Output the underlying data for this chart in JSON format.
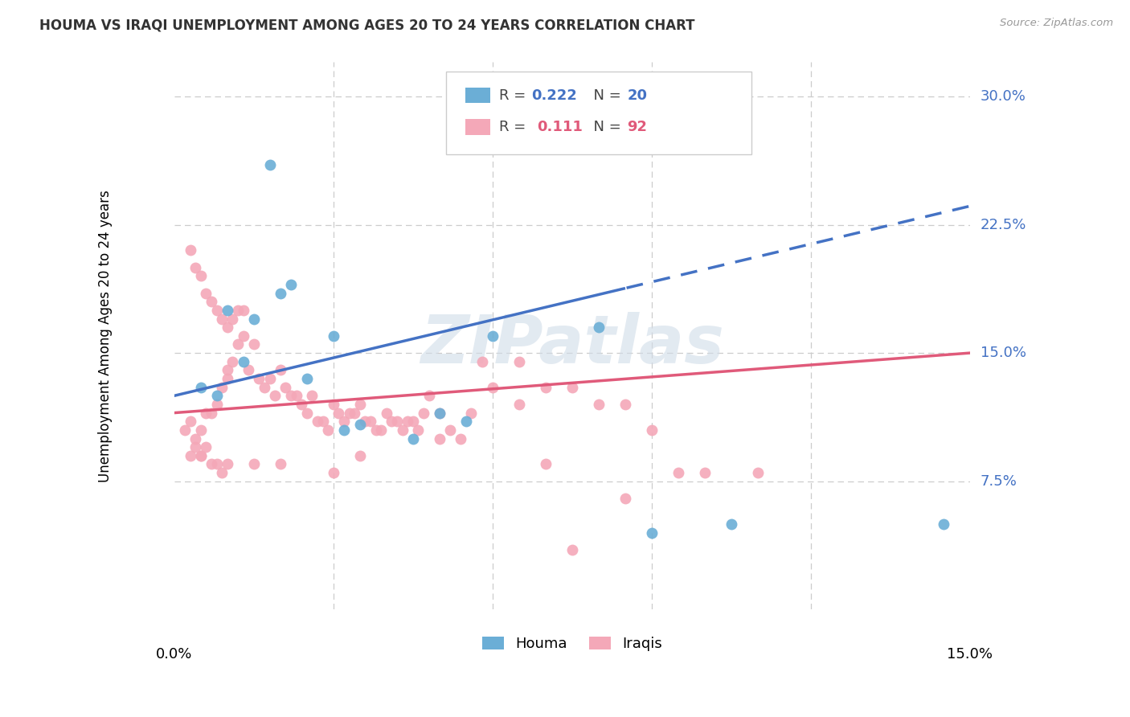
{
  "title": "HOUMA VS IRAQI UNEMPLOYMENT AMONG AGES 20 TO 24 YEARS CORRELATION CHART",
  "source": "Source: ZipAtlas.com",
  "ylabel": "Unemployment Among Ages 20 to 24 years",
  "ytick_labels": [
    "7.5%",
    "15.0%",
    "22.5%",
    "30.0%"
  ],
  "ytick_values": [
    7.5,
    15.0,
    22.5,
    30.0
  ],
  "xlim": [
    0.0,
    15.0
  ],
  "ylim": [
    0.0,
    32.0
  ],
  "houma_color": "#6baed6",
  "iraqis_color": "#f4a8b8",
  "houma_line_color": "#4472c4",
  "iraqis_line_color": "#e05a7a",
  "houma_R": 0.222,
  "houma_N": 20,
  "iraqis_R": 0.111,
  "iraqis_N": 92,
  "houma_points": [
    [
      0.5,
      13.0
    ],
    [
      0.8,
      12.5
    ],
    [
      1.0,
      17.5
    ],
    [
      1.3,
      14.5
    ],
    [
      1.5,
      17.0
    ],
    [
      1.8,
      26.0
    ],
    [
      2.0,
      18.5
    ],
    [
      2.2,
      19.0
    ],
    [
      2.5,
      13.5
    ],
    [
      3.0,
      16.0
    ],
    [
      3.2,
      10.5
    ],
    [
      3.5,
      10.8
    ],
    [
      4.5,
      10.0
    ],
    [
      5.0,
      11.5
    ],
    [
      5.5,
      11.0
    ],
    [
      6.0,
      16.0
    ],
    [
      8.0,
      16.5
    ],
    [
      9.0,
      4.5
    ],
    [
      10.5,
      5.0
    ],
    [
      14.5,
      5.0
    ]
  ],
  "iraqis_points": [
    [
      0.2,
      10.5
    ],
    [
      0.3,
      11.0
    ],
    [
      0.4,
      10.0
    ],
    [
      0.5,
      10.5
    ],
    [
      0.5,
      9.0
    ],
    [
      0.6,
      11.5
    ],
    [
      0.7,
      11.5
    ],
    [
      0.8,
      12.0
    ],
    [
      0.9,
      13.0
    ],
    [
      1.0,
      14.0
    ],
    [
      1.0,
      13.5
    ],
    [
      1.1,
      14.5
    ],
    [
      1.2,
      15.5
    ],
    [
      1.3,
      16.0
    ],
    [
      1.4,
      14.0
    ],
    [
      1.5,
      15.5
    ],
    [
      1.6,
      13.5
    ],
    [
      1.7,
      13.0
    ],
    [
      1.8,
      13.5
    ],
    [
      1.9,
      12.5
    ],
    [
      2.0,
      14.0
    ],
    [
      2.1,
      13.0
    ],
    [
      2.2,
      12.5
    ],
    [
      2.3,
      12.5
    ],
    [
      2.4,
      12.0
    ],
    [
      2.5,
      11.5
    ],
    [
      2.6,
      12.5
    ],
    [
      2.7,
      11.0
    ],
    [
      2.8,
      11.0
    ],
    [
      2.9,
      10.5
    ],
    [
      3.0,
      12.0
    ],
    [
      3.1,
      11.5
    ],
    [
      3.2,
      11.0
    ],
    [
      3.3,
      11.5
    ],
    [
      3.4,
      11.5
    ],
    [
      3.5,
      12.0
    ],
    [
      3.6,
      11.0
    ],
    [
      3.7,
      11.0
    ],
    [
      3.8,
      10.5
    ],
    [
      3.9,
      10.5
    ],
    [
      4.0,
      11.5
    ],
    [
      4.1,
      11.0
    ],
    [
      4.2,
      11.0
    ],
    [
      4.3,
      10.5
    ],
    [
      4.4,
      11.0
    ],
    [
      4.5,
      11.0
    ],
    [
      4.6,
      10.5
    ],
    [
      4.7,
      11.5
    ],
    [
      4.8,
      12.5
    ],
    [
      5.0,
      11.5
    ],
    [
      5.0,
      10.0
    ],
    [
      5.2,
      10.5
    ],
    [
      5.4,
      10.0
    ],
    [
      5.6,
      11.5
    ],
    [
      5.8,
      14.5
    ],
    [
      6.0,
      13.0
    ],
    [
      6.5,
      12.0
    ],
    [
      7.0,
      13.0
    ],
    [
      7.5,
      13.0
    ],
    [
      8.0,
      12.0
    ],
    [
      8.5,
      12.0
    ],
    [
      9.0,
      10.5
    ],
    [
      9.5,
      8.0
    ],
    [
      10.0,
      8.0
    ],
    [
      11.0,
      8.0
    ],
    [
      0.3,
      21.0
    ],
    [
      0.4,
      20.0
    ],
    [
      0.5,
      19.5
    ],
    [
      0.6,
      18.5
    ],
    [
      0.7,
      18.0
    ],
    [
      0.8,
      17.5
    ],
    [
      0.9,
      17.0
    ],
    [
      1.0,
      16.5
    ],
    [
      1.1,
      17.0
    ],
    [
      1.2,
      17.5
    ],
    [
      1.3,
      17.5
    ],
    [
      0.3,
      9.0
    ],
    [
      0.4,
      9.5
    ],
    [
      0.5,
      9.0
    ],
    [
      0.6,
      9.5
    ],
    [
      0.7,
      8.5
    ],
    [
      0.8,
      8.5
    ],
    [
      0.9,
      8.0
    ],
    [
      1.0,
      8.5
    ],
    [
      1.5,
      8.5
    ],
    [
      2.0,
      8.5
    ],
    [
      3.0,
      8.0
    ],
    [
      3.5,
      9.0
    ],
    [
      7.0,
      8.5
    ],
    [
      8.5,
      6.5
    ],
    [
      7.5,
      3.5
    ],
    [
      6.5,
      14.5
    ]
  ],
  "watermark_text": "ZIPatlas",
  "background_color": "#ffffff"
}
